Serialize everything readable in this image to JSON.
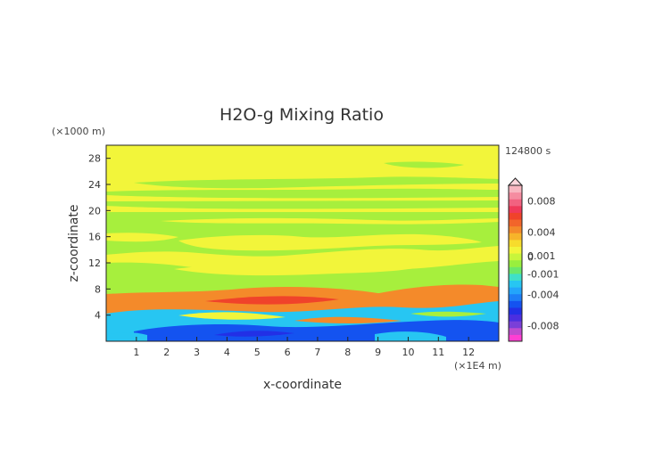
{
  "chart_data": {
    "type": "heatmap",
    "title": "H2O-g Mixing Ratio",
    "xlabel": "x-coordinate",
    "ylabel": "z-coordinate",
    "x_unit": "(×1E4 m)",
    "y_unit": "(×1000 m)",
    "time_label": "124800 s",
    "xlim": [
      0,
      13
    ],
    "ylim": [
      0,
      30
    ],
    "x_ticks": [
      "1",
      "2",
      "3",
      "4",
      "5",
      "6",
      "7",
      "8",
      "9",
      "10",
      "11",
      "12"
    ],
    "y_ticks": [
      "4",
      "8",
      "12",
      "16",
      "20",
      "24",
      "28"
    ],
    "colorbar": {
      "range": [
        -0.01,
        0.01
      ],
      "tick_labels": [
        "0.008",
        "0.004",
        "0.001",
        "0",
        "-0.001",
        "-0.004",
        "-0.008"
      ],
      "tick_values": [
        0.008,
        0.004,
        0.001,
        0,
        -0.001,
        -0.004,
        -0.008
      ],
      "colors": [
        "#ff3fd2",
        "#c04ccf",
        "#7a3fd8",
        "#4b2fe0",
        "#2230e6",
        "#1453f0",
        "#1d7ff7",
        "#23a5fb",
        "#27c6f2",
        "#3fe0c8",
        "#6ae86b",
        "#99ef3e",
        "#c8f53b",
        "#f2f53a",
        "#f7dc2c",
        "#f7b42a",
        "#f48a2a",
        "#f2652a",
        "#f0432a",
        "#f03a5a",
        "#f26280",
        "#f58ca0",
        "#f8b6c0"
      ],
      "over_color": "#ffd6dc"
    },
    "colors": {
      "upper_background": "#f2f53a",
      "green_band": "#a7ef3d",
      "orange": "#f48a2a",
      "red": "#f0432a",
      "cyan": "#27c6f2",
      "blue": "#1453f0",
      "dark_blue": "#2230e6"
    }
  }
}
